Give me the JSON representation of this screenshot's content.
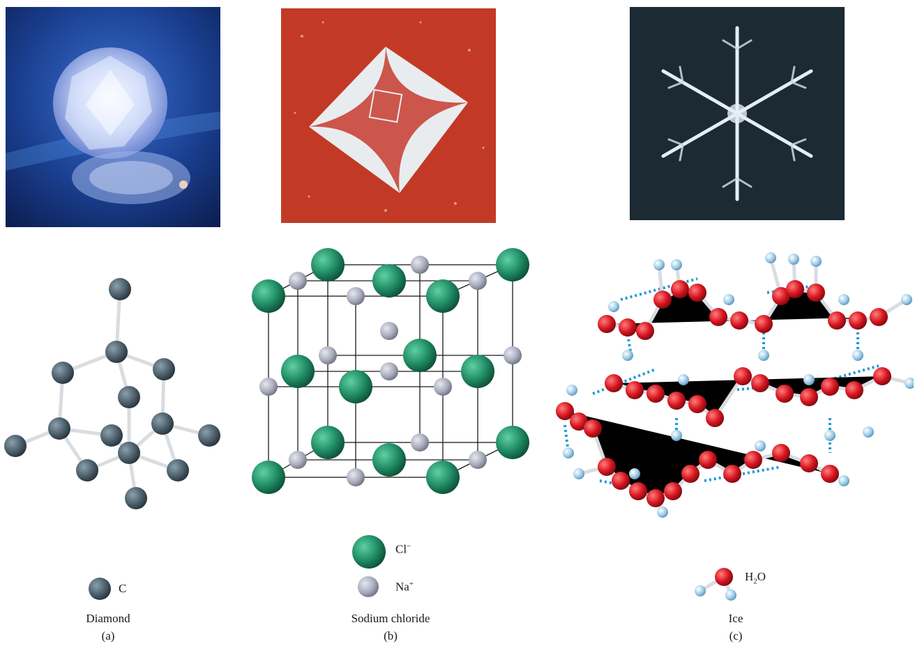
{
  "panels": [
    {
      "id": "a",
      "title": "Diamond",
      "letter": "(a)",
      "legend": [
        {
          "symbol": "C",
          "atom_color": "#4c5f6b"
        }
      ],
      "photo_subject": "cut diamond on blue background"
    },
    {
      "id": "b",
      "title": "Sodium chloride",
      "letter": "(b)",
      "legend": [
        {
          "symbol": "Cl",
          "charge": "−",
          "atom_color": "#1f8a63"
        },
        {
          "symbol": "Na",
          "charge": "+",
          "atom_color": "#a9adbd"
        }
      ],
      "photo_subject": "salt crystal on red background"
    },
    {
      "id": "c",
      "title": "Ice",
      "letter": "(c)",
      "legend": [
        {
          "symbol": "H",
          "subscript": "2",
          "suffix": "O",
          "atom_color": "#d6141e",
          "h_color": "#9fcde8"
        }
      ],
      "photo_subject": "snowflake on dark background"
    }
  ],
  "colors": {
    "bond": "#d9dde2",
    "hydrogen_bond": "#1e9ad6",
    "diamond_bg": "#1a3f8f",
    "salt_bg": "#c23a26",
    "snow_bg": "#1c2a33"
  }
}
